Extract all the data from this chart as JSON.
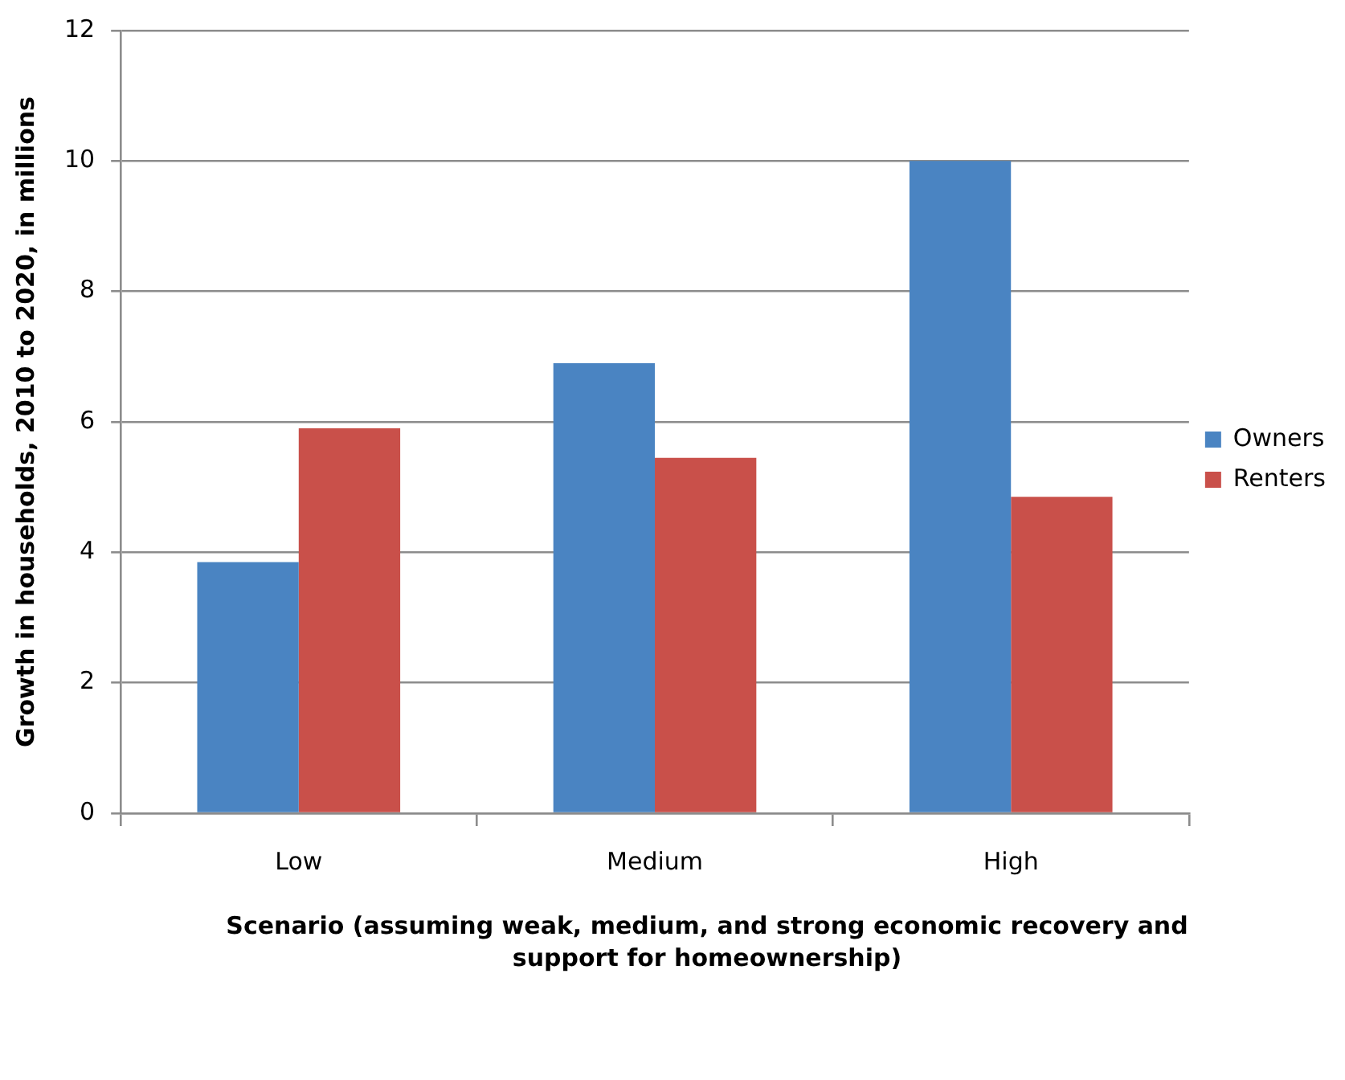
{
  "chart_data": {
    "type": "bar",
    "categories": [
      "Low",
      "Medium",
      "High"
    ],
    "series": [
      {
        "name": "Owners",
        "color": "#4a84c2",
        "values": [
          3.85,
          6.9,
          10.0
        ]
      },
      {
        "name": "Renters",
        "color": "#c9504a",
        "values": [
          5.9,
          5.45,
          4.85
        ]
      }
    ],
    "ylabel": "Growth in households, 2010 to 2020, in millions",
    "xlabel": "Scenario (assuming weak, medium, and strong economic recovery and support for homeownership)",
    "ylim": [
      0,
      12
    ],
    "yticks": [
      0,
      2,
      4,
      6,
      8,
      10,
      12
    ],
    "grid": "y",
    "legend": "right"
  }
}
